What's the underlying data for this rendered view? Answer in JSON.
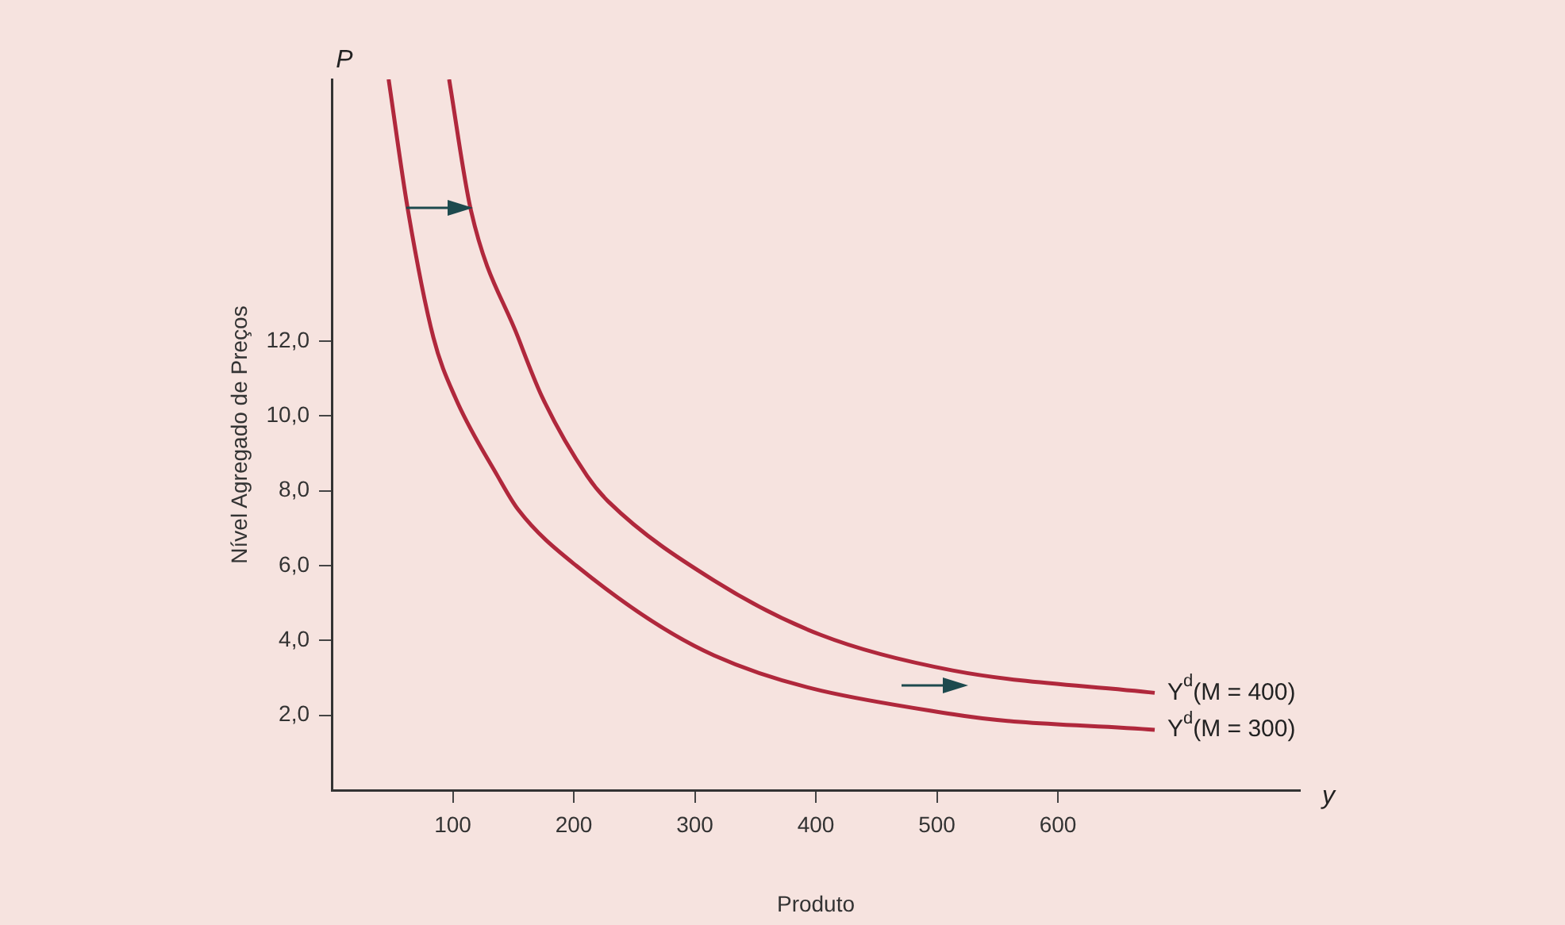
{
  "chart_data": {
    "type": "line",
    "xlabel": "Produto",
    "ylabel": "Nível Agregado de Preços",
    "annotations": [
      "P",
      "y"
    ],
    "xlim": [
      0,
      800
    ],
    "ylim": [
      0,
      19
    ],
    "xticks": [
      100,
      200,
      300,
      400,
      500,
      600
    ],
    "yticks": [
      {
        "value": 2,
        "label": "2,0"
      },
      {
        "value": 4,
        "label": "4,0"
      },
      {
        "value": 6,
        "label": "6,0"
      },
      {
        "value": 8,
        "label": "8,0"
      },
      {
        "value": 10,
        "label": "10,0"
      },
      {
        "value": 12,
        "label": "12,0"
      }
    ],
    "grid": false,
    "legend": false,
    "marker": "none",
    "line_style": "solid",
    "series": [
      {
        "name": "Y$^{d}$(M = 400)",
        "color": "#b0283c",
        "x": [
          97,
          115,
          154,
          174,
          211,
          229,
          316,
          404,
          513,
          680
        ],
        "values": [
          19.0,
          15.5,
          12.1,
          10.5,
          8.4,
          7.7,
          5.6,
          4.15,
          3.2,
          2.6
        ]
      },
      {
        "name": "Y$^{d}$(M = 300)",
        "color": "#b0283c",
        "x": [
          47,
          63,
          84,
          102,
          137,
          154,
          202,
          316,
          513,
          680
        ],
        "values": [
          19.0,
          15.5,
          12.1,
          10.5,
          8.4,
          7.5,
          6.0,
          3.6,
          2.03,
          1.61
        ]
      }
    ]
  }
}
